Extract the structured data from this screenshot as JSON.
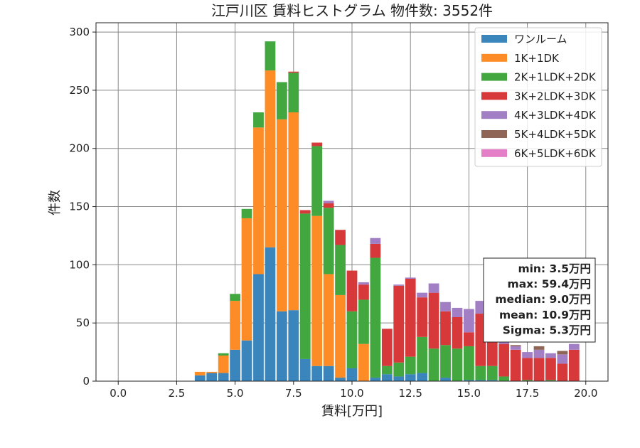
{
  "chart_data": {
    "type": "bar",
    "stacked": true,
    "title": "江戸川区 賃料ヒストグラム 物件数: 3552件",
    "xlabel": "賃料[万円]",
    "ylabel": "件数",
    "xlim": [
      -0.95,
      20.95
    ],
    "ylim": [
      0,
      308
    ],
    "xticks": [
      0,
      2.5,
      5,
      7.5,
      10,
      12.5,
      15,
      17.5,
      20
    ],
    "xtick_labels": [
      "0.0",
      "2.5",
      "5.0",
      "7.5",
      "10.0",
      "12.5",
      "15.0",
      "17.5",
      "20.0"
    ],
    "yticks": [
      0,
      50,
      100,
      150,
      200,
      250,
      300
    ],
    "ytick_labels": [
      "0",
      "50",
      "100",
      "150",
      "200",
      "250",
      "300"
    ],
    "grid": true,
    "legend_position": "top-right",
    "bin_width": 0.5,
    "x": [
      3.5,
      4.0,
      4.5,
      5.0,
      5.5,
      6.0,
      6.5,
      7.0,
      7.5,
      8.0,
      8.5,
      9.0,
      9.5,
      10.0,
      10.5,
      11.0,
      11.5,
      12.0,
      12.5,
      13.0,
      13.5,
      14.0,
      14.5,
      15.0,
      15.5,
      16.0,
      16.5,
      17.0,
      17.5,
      18.0,
      18.5,
      19.0,
      19.5
    ],
    "series": [
      {
        "name": "ワンルーム",
        "color": "#3a85bc",
        "values": [
          5,
          7,
          7,
          27,
          35,
          92,
          115,
          60,
          61,
          19,
          13,
          13,
          3,
          11,
          0,
          3,
          6,
          4,
          6,
          7,
          0,
          3,
          0,
          1,
          1,
          1,
          0,
          0,
          0,
          0,
          0,
          0,
          0
        ]
      },
      {
        "name": "1K+1DK",
        "color": "#fd8c26",
        "values": [
          3,
          1,
          15,
          42,
          105,
          126,
          152,
          165,
          170,
          0,
          129,
          79,
          71,
          0,
          32,
          0,
          0,
          0,
          0,
          0,
          0,
          0,
          0,
          0,
          0,
          0,
          0,
          0,
          0,
          0,
          0,
          0,
          0
        ]
      },
      {
        "name": "2K+1LDK+2DK",
        "color": "#41a73e",
        "values": [
          0,
          0,
          2,
          6,
          8,
          13,
          25,
          32,
          34,
          125,
          60,
          57,
          43,
          49,
          38,
          103,
          7,
          12,
          15,
          31,
          28,
          28,
          28,
          29,
          12,
          12,
          4,
          0,
          1,
          0,
          1,
          0,
          0
        ]
      },
      {
        "name": "3K+2LDK+3DK",
        "color": "#d7393b",
        "values": [
          0,
          0,
          0,
          0,
          0,
          0,
          0,
          0,
          1,
          3,
          3,
          4,
          13,
          35,
          13,
          12,
          32,
          66,
          67,
          34,
          48,
          29,
          27,
          12,
          45,
          30,
          28,
          27,
          19,
          20,
          19,
          15,
          27
        ]
      },
      {
        "name": "4K+3LDK+4DK",
        "color": "#a27ec5",
        "values": [
          0,
          0,
          0,
          0,
          0,
          0,
          0,
          0,
          0,
          0,
          0,
          2,
          0,
          0,
          2,
          5,
          0,
          1,
          1,
          4,
          8,
          8,
          8,
          20,
          11,
          6,
          12,
          3,
          5,
          7,
          4,
          8,
          5
        ]
      },
      {
        "name": "5K+4LDK+5DK",
        "color": "#8f6556",
        "values": [
          0,
          0,
          0,
          0,
          0,
          0,
          0,
          0,
          0,
          0,
          0,
          0,
          0,
          0,
          0,
          0,
          0,
          0,
          0,
          0,
          0,
          0,
          0,
          0,
          0,
          0,
          0,
          1,
          0,
          3,
          0,
          3,
          0
        ]
      },
      {
        "name": "6K+5LDK+6DK",
        "color": "#e47ec7",
        "values": [
          0,
          0,
          0,
          0,
          0,
          0,
          0,
          0,
          0,
          0,
          0,
          0,
          0,
          0,
          0,
          0,
          0,
          0,
          0,
          0,
          0,
          0,
          0,
          0,
          0,
          0,
          0,
          0,
          0,
          0,
          0,
          0,
          0
        ]
      }
    ],
    "annotations": [
      "min: 3.5万円",
      "max: 59.4万円",
      "median: 9.0万円",
      "mean: 10.9万円",
      "Sigma: 5.3万円"
    ]
  }
}
